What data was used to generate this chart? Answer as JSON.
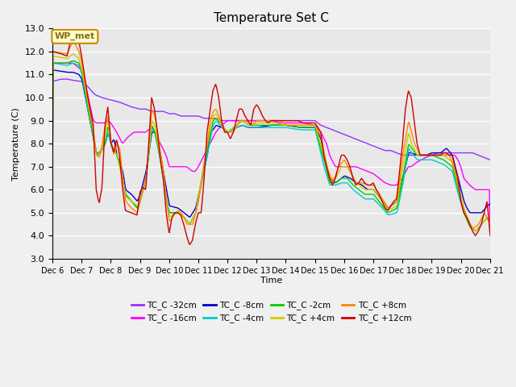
{
  "title": "Temperature Set C",
  "xlabel": "Time",
  "ylabel": "Temperature (C)",
  "ylim": [
    3.0,
    13.0
  ],
  "yticks": [
    3.0,
    4.0,
    5.0,
    6.0,
    7.0,
    8.0,
    9.0,
    10.0,
    11.0,
    12.0,
    13.0
  ],
  "xtick_labels": [
    "Dec 6",
    "Dec 7",
    "Dec 8",
    "Dec 9",
    "Dec 10",
    "Dec 11",
    "Dec 12",
    "Dec 13",
    "Dec 14",
    "Dec 15",
    "Dec 16",
    "Dec 17",
    "Dec 18",
    "Dec 19",
    "Dec 20",
    "Dec 21"
  ],
  "wp_met_annotation": "WP_met",
  "plot_bg_color": "#e8e8e8",
  "fig_bg_color": "#f0f0f0",
  "series": [
    {
      "label": "TC_C -32cm",
      "color": "#9b30ff"
    },
    {
      "label": "TC_C -16cm",
      "color": "#ff00ff"
    },
    {
      "label": "TC_C -8cm",
      "color": "#0000cc"
    },
    {
      "label": "TC_C -4cm",
      "color": "#00cccc"
    },
    {
      "label": "TC_C -2cm",
      "color": "#00cc00"
    },
    {
      "label": "TC_C +4cm",
      "color": "#cccc00"
    },
    {
      "label": "TC_C +8cm",
      "color": "#ff8800"
    },
    {
      "label": "TC_C +12cm",
      "color": "#cc0000"
    }
  ],
  "days": 15,
  "pts_per_day": 48
}
